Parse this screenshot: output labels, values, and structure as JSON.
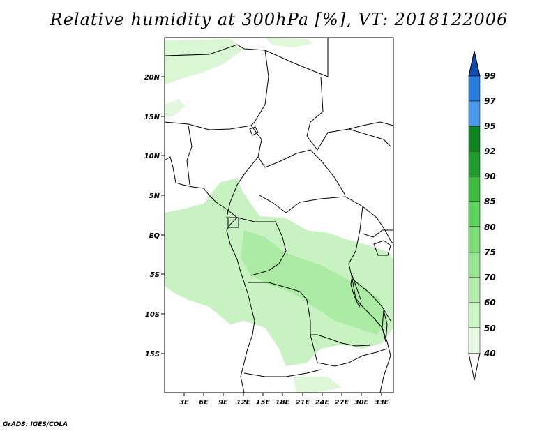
{
  "title": "Relative humidity at 300hPa [%], VT: 2018122006",
  "credit": "GrADS: IGES/COLA",
  "map": {
    "lat_ticks": [
      "20N",
      "15N",
      "10N",
      "5N",
      "EQ",
      "5S",
      "10S",
      "15S"
    ],
    "lon_ticks": [
      "3E",
      "6E",
      "9E",
      "12E",
      "15E",
      "18E",
      "21E",
      "24E",
      "27E",
      "30E",
      "33E"
    ]
  },
  "colorbar": {
    "labels": [
      "40",
      "50",
      "60",
      "70",
      "75",
      "80",
      "85",
      "90",
      "92",
      "95",
      "97",
      "99"
    ],
    "colors": [
      "#ffffff",
      "#e8fae6",
      "#d2f5cd",
      "#baefb3",
      "#a2ea9a",
      "#8ae480",
      "#6fd966",
      "#4fcb4a",
      "#2fb334",
      "#1a9a28",
      "#0f861f",
      "#4a9bf0",
      "#2a7ee0",
      "#1562c8",
      "#0f4bb0"
    ]
  }
}
